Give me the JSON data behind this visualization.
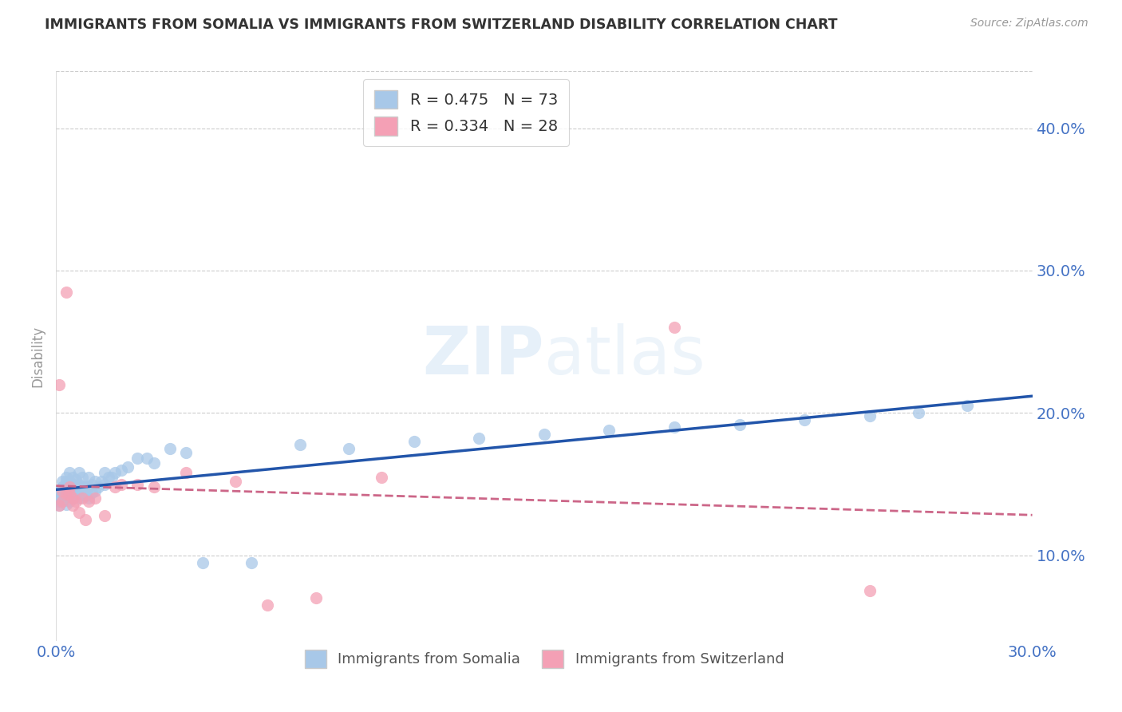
{
  "title": "IMMIGRANTS FROM SOMALIA VS IMMIGRANTS FROM SWITZERLAND DISABILITY CORRELATION CHART",
  "source": "Source: ZipAtlas.com",
  "ylabel": "Disability",
  "xlim": [
    0.0,
    0.3
  ],
  "ylim": [
    0.04,
    0.44
  ],
  "ytick_positions": [
    0.1,
    0.2,
    0.3,
    0.4
  ],
  "ytick_labels": [
    "10.0%",
    "20.0%",
    "30.0%",
    "40.0%"
  ],
  "somalia_color": "#a8c8e8",
  "somalia_line_color": "#2255aa",
  "switzerland_color": "#f4a0b5",
  "switzerland_line_color": "#cc6688",
  "somalia_R": 0.475,
  "somalia_N": 73,
  "switzerland_R": 0.334,
  "switzerland_N": 28,
  "background_color": "#ffffff",
  "grid_color": "#cccccc",
  "title_color": "#333333",
  "axis_label_color": "#4472c4",
  "legend_R_color": "#222222",
  "legend_N_color": "#4472c4",
  "somalia_x": [
    0.001,
    0.001,
    0.001,
    0.001,
    0.002,
    0.002,
    0.002,
    0.002,
    0.002,
    0.002,
    0.003,
    0.003,
    0.003,
    0.003,
    0.003,
    0.003,
    0.003,
    0.004,
    0.004,
    0.004,
    0.004,
    0.004,
    0.005,
    0.005,
    0.005,
    0.005,
    0.006,
    0.006,
    0.006,
    0.007,
    0.007,
    0.007,
    0.007,
    0.008,
    0.008,
    0.008,
    0.009,
    0.009,
    0.01,
    0.01,
    0.01,
    0.011,
    0.011,
    0.012,
    0.012,
    0.013,
    0.014,
    0.015,
    0.015,
    0.016,
    0.017,
    0.018,
    0.02,
    0.022,
    0.025,
    0.028,
    0.03,
    0.035,
    0.04,
    0.045,
    0.06,
    0.075,
    0.09,
    0.11,
    0.13,
    0.15,
    0.17,
    0.19,
    0.21,
    0.23,
    0.25,
    0.265,
    0.28
  ],
  "somalia_y": [
    0.135,
    0.145,
    0.14,
    0.138,
    0.142,
    0.148,
    0.138,
    0.143,
    0.147,
    0.152,
    0.136,
    0.14,
    0.145,
    0.148,
    0.152,
    0.155,
    0.143,
    0.138,
    0.142,
    0.148,
    0.152,
    0.158,
    0.14,
    0.145,
    0.15,
    0.155,
    0.142,
    0.147,
    0.153,
    0.14,
    0.145,
    0.15,
    0.158,
    0.143,
    0.148,
    0.155,
    0.142,
    0.148,
    0.14,
    0.148,
    0.155,
    0.144,
    0.15,
    0.145,
    0.152,
    0.148,
    0.152,
    0.15,
    0.158,
    0.155,
    0.155,
    0.158,
    0.16,
    0.162,
    0.168,
    0.168,
    0.165,
    0.175,
    0.172,
    0.095,
    0.095,
    0.178,
    0.175,
    0.18,
    0.182,
    0.185,
    0.188,
    0.19,
    0.192,
    0.195,
    0.198,
    0.2,
    0.205
  ],
  "switzerland_x": [
    0.001,
    0.001,
    0.002,
    0.002,
    0.003,
    0.003,
    0.004,
    0.004,
    0.005,
    0.005,
    0.006,
    0.007,
    0.008,
    0.009,
    0.01,
    0.012,
    0.015,
    0.018,
    0.02,
    0.025,
    0.03,
    0.04,
    0.055,
    0.065,
    0.08,
    0.1,
    0.19,
    0.25
  ],
  "switzerland_y": [
    0.135,
    0.22,
    0.138,
    0.145,
    0.143,
    0.285,
    0.148,
    0.143,
    0.14,
    0.135,
    0.138,
    0.13,
    0.14,
    0.125,
    0.138,
    0.14,
    0.128,
    0.148,
    0.15,
    0.15,
    0.148,
    0.158,
    0.152,
    0.065,
    0.07,
    0.155,
    0.26,
    0.075
  ]
}
